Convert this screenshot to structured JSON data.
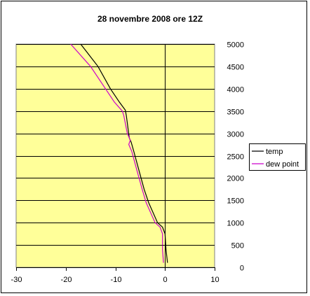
{
  "chart_data": {
    "type": "line",
    "title": "28 novembre 2008 ore 12Z",
    "xlabel": "",
    "ylabel": "",
    "xlim": [
      -30,
      10
    ],
    "ylim": [
      0,
      5000
    ],
    "x_ticks": [
      -30,
      -20,
      -10,
      0,
      10
    ],
    "y_ticks": [
      0,
      500,
      1000,
      1500,
      2000,
      2500,
      3000,
      3500,
      4000,
      4500,
      5000
    ],
    "grid": "horizontal",
    "legend_position": "right",
    "plot_background": "#FFFF99",
    "series": [
      {
        "name": "temp",
        "color": "#000000",
        "points": [
          [
            0.5,
            100
          ],
          [
            0.2,
            400
          ],
          [
            0,
            750
          ],
          [
            -0.5,
            900
          ],
          [
            -1.5,
            1000
          ],
          [
            -3.3,
            1450
          ],
          [
            -4.2,
            1750
          ],
          [
            -5.2,
            2150
          ],
          [
            -6.3,
            2600
          ],
          [
            -6.8,
            2800
          ],
          [
            -7.2,
            2900
          ],
          [
            -7.8,
            3400
          ],
          [
            -8.0,
            3520
          ],
          [
            -9.2,
            3700
          ],
          [
            -11.0,
            4000
          ],
          [
            -13.5,
            4500
          ],
          [
            -17.0,
            5000
          ]
        ]
      },
      {
        "name": "dew point",
        "color": "#CC00CC",
        "points": [
          [
            -0.3,
            100
          ],
          [
            -0.5,
            400
          ],
          [
            -0.5,
            750
          ],
          [
            -1.0,
            900
          ],
          [
            -2.0,
            1000
          ],
          [
            -3.8,
            1450
          ],
          [
            -4.6,
            1750
          ],
          [
            -5.6,
            2150
          ],
          [
            -6.7,
            2600
          ],
          [
            -7.3,
            2750
          ],
          [
            -7.0,
            2850
          ],
          [
            -7.6,
            3000
          ],
          [
            -8.3,
            3400
          ],
          [
            -8.6,
            3500
          ],
          [
            -10.2,
            3700
          ],
          [
            -12.0,
            4000
          ],
          [
            -15.0,
            4500
          ],
          [
            -19.0,
            5000
          ]
        ]
      }
    ]
  }
}
